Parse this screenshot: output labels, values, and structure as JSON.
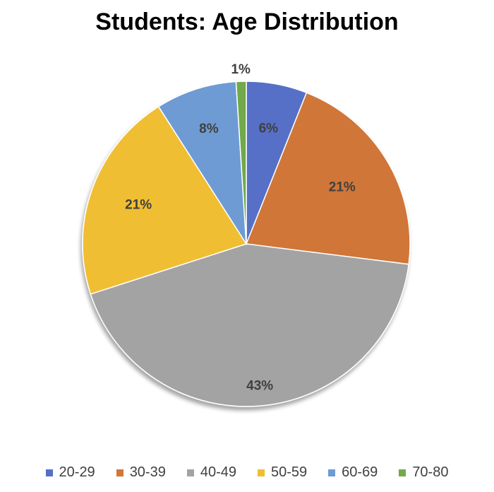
{
  "chart_data": {
    "type": "pie",
    "title": "Students: Age Distribution",
    "categories": [
      "20-29",
      "30-39",
      "40-49",
      "50-59",
      "60-69",
      "70-80"
    ],
    "values": [
      6,
      21,
      43,
      21,
      8,
      1
    ],
    "labels": [
      "6%",
      "21%",
      "43%",
      "21%",
      "8%",
      "1%"
    ],
    "colors": [
      "#5470C6",
      "#D07638",
      "#A3A3A3",
      "#F0BE30",
      "#6E9BD4",
      "#71A94B"
    ],
    "legend_position": "bottom"
  }
}
